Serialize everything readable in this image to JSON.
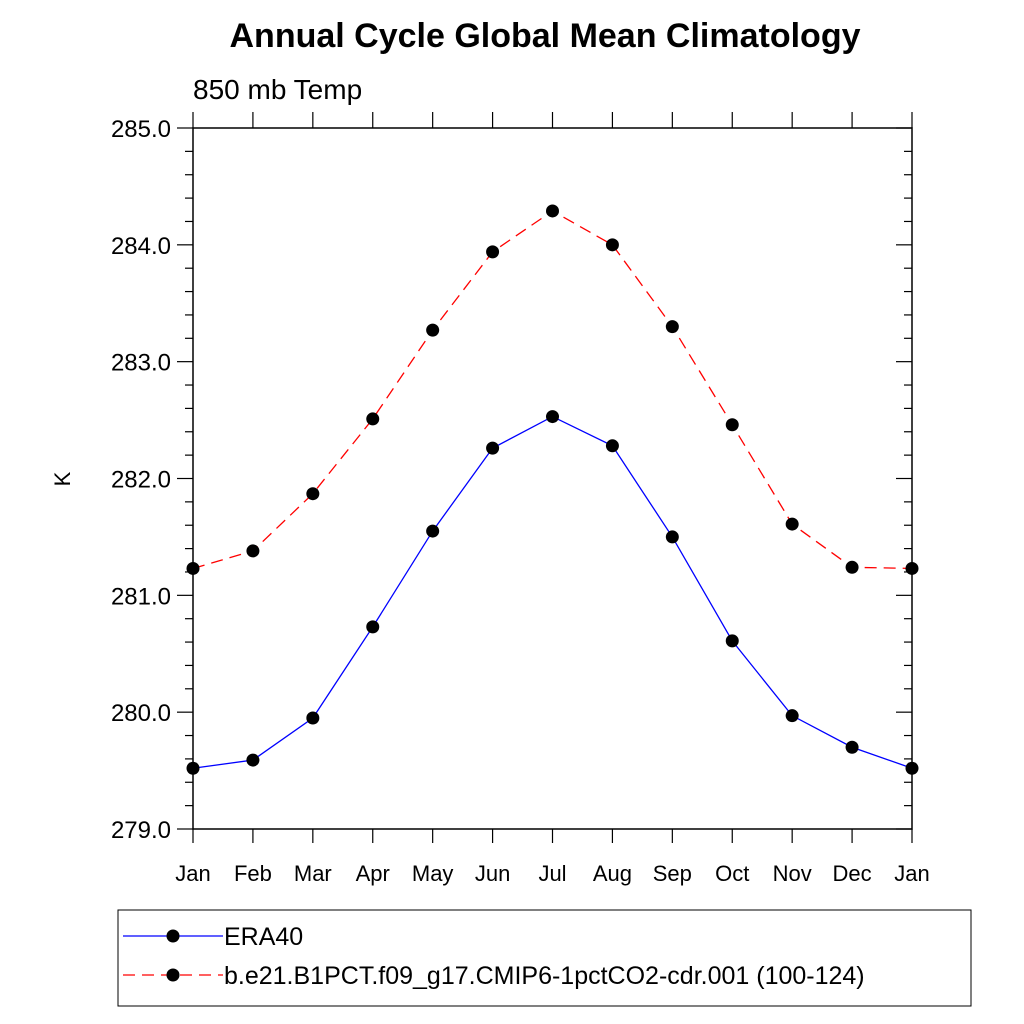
{
  "chart_data": {
    "type": "line",
    "title": "Annual Cycle Global Mean Climatology",
    "subtitle": "850 mb Temp",
    "xlabel": "",
    "ylabel": "K",
    "categories": [
      "Jan",
      "Feb",
      "Mar",
      "Apr",
      "May",
      "Jun",
      "Jul",
      "Aug",
      "Sep",
      "Oct",
      "Nov",
      "Dec",
      "Jan"
    ],
    "ylim": [
      279.0,
      285.0
    ],
    "yticks": [
      "279.0",
      "280.0",
      "281.0",
      "282.0",
      "283.0",
      "284.0",
      "285.0"
    ],
    "grid": false,
    "legend_position": "bottom",
    "series": [
      {
        "name": "ERA40",
        "color": "#0000ff",
        "line_style": "solid",
        "marker": "filled-circle",
        "values": [
          279.52,
          279.59,
          279.95,
          280.73,
          281.55,
          282.26,
          282.53,
          282.28,
          281.5,
          280.61,
          279.97,
          279.7,
          279.52
        ]
      },
      {
        "name": "b.e21.B1PCT.f09_g17.CMIP6-1pctCO2-cdr.001 (100-124)",
        "color": "#ff0000",
        "line_style": "dashed",
        "marker": "filled-circle",
        "values": [
          281.23,
          281.38,
          281.87,
          282.51,
          283.27,
          283.94,
          284.29,
          284.0,
          283.3,
          282.46,
          281.61,
          281.24,
          281.23
        ]
      }
    ]
  }
}
